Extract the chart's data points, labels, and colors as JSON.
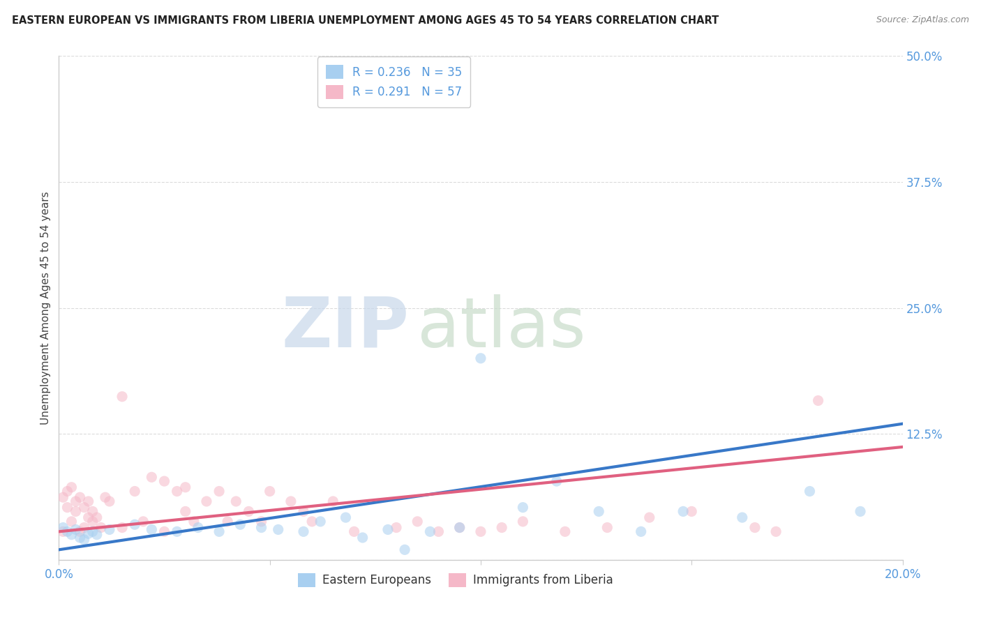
{
  "title": "EASTERN EUROPEAN VS IMMIGRANTS FROM LIBERIA UNEMPLOYMENT AMONG AGES 45 TO 54 YEARS CORRELATION CHART",
  "source": "Source: ZipAtlas.com",
  "ylabel": "Unemployment Among Ages 45 to 54 years",
  "xlim": [
    0.0,
    0.2
  ],
  "ylim": [
    0.0,
    0.5
  ],
  "xticks": [
    0.0,
    0.05,
    0.1,
    0.15,
    0.2
  ],
  "xticklabels": [
    "0.0%",
    "",
    "",
    "",
    "20.0%"
  ],
  "yticks": [
    0.0,
    0.125,
    0.25,
    0.375,
    0.5
  ],
  "yticklabels": [
    "",
    "12.5%",
    "25.0%",
    "37.5%",
    "50.0%"
  ],
  "legend_entries": [
    {
      "label": "Eastern Europeans",
      "R": 0.236,
      "N": 35,
      "color": "#a8cff0"
    },
    {
      "label": "Immigrants from Liberia",
      "R": 0.291,
      "N": 57,
      "color": "#f5b8c8"
    }
  ],
  "blue_scatter_x": [
    0.001,
    0.002,
    0.003,
    0.004,
    0.005,
    0.006,
    0.007,
    0.008,
    0.009,
    0.012,
    0.018,
    0.022,
    0.028,
    0.033,
    0.038,
    0.043,
    0.048,
    0.052,
    0.058,
    0.062,
    0.068,
    0.072,
    0.078,
    0.082,
    0.088,
    0.095,
    0.1,
    0.11,
    0.118,
    0.128,
    0.138,
    0.148,
    0.162,
    0.178,
    0.19
  ],
  "blue_scatter_y": [
    0.032,
    0.028,
    0.025,
    0.03,
    0.022,
    0.02,
    0.026,
    0.028,
    0.025,
    0.03,
    0.035,
    0.03,
    0.028,
    0.032,
    0.028,
    0.035,
    0.032,
    0.03,
    0.028,
    0.038,
    0.042,
    0.022,
    0.03,
    0.01,
    0.028,
    0.032,
    0.2,
    0.052,
    0.078,
    0.048,
    0.028,
    0.048,
    0.042,
    0.068,
    0.048
  ],
  "pink_scatter_x": [
    0.001,
    0.001,
    0.002,
    0.002,
    0.003,
    0.003,
    0.004,
    0.004,
    0.005,
    0.005,
    0.006,
    0.006,
    0.007,
    0.007,
    0.008,
    0.008,
    0.009,
    0.01,
    0.011,
    0.012,
    0.015,
    0.015,
    0.018,
    0.02,
    0.022,
    0.025,
    0.025,
    0.028,
    0.03,
    0.03,
    0.032,
    0.035,
    0.038,
    0.04,
    0.042,
    0.045,
    0.048,
    0.05,
    0.055,
    0.058,
    0.06,
    0.065,
    0.07,
    0.08,
    0.085,
    0.09,
    0.095,
    0.1,
    0.105,
    0.11,
    0.12,
    0.13,
    0.14,
    0.15,
    0.165,
    0.17,
    0.18
  ],
  "pink_scatter_y": [
    0.028,
    0.062,
    0.052,
    0.068,
    0.038,
    0.072,
    0.048,
    0.058,
    0.028,
    0.062,
    0.032,
    0.052,
    0.042,
    0.058,
    0.038,
    0.048,
    0.042,
    0.032,
    0.062,
    0.058,
    0.162,
    0.032,
    0.068,
    0.038,
    0.082,
    0.078,
    0.028,
    0.068,
    0.072,
    0.048,
    0.038,
    0.058,
    0.068,
    0.038,
    0.058,
    0.048,
    0.038,
    0.068,
    0.058,
    0.048,
    0.038,
    0.058,
    0.028,
    0.032,
    0.038,
    0.028,
    0.032,
    0.028,
    0.032,
    0.038,
    0.028,
    0.032,
    0.042,
    0.048,
    0.032,
    0.028,
    0.158
  ],
  "blue_line_x": [
    0.0,
    0.2
  ],
  "blue_line_y": [
    0.01,
    0.135
  ],
  "pink_line_x": [
    0.0,
    0.2
  ],
  "pink_line_y": [
    0.028,
    0.112
  ],
  "scatter_size": 120,
  "scatter_alpha": 0.55,
  "blue_color": "#a8cff0",
  "pink_color": "#f5b8c8",
  "blue_line_color": "#3878c8",
  "pink_line_color": "#e06080",
  "bg_color": "#ffffff",
  "grid_color": "#cccccc",
  "title_color": "#222222",
  "axis_label_color": "#444444",
  "tick_color": "#5599dd",
  "watermark_zip_color": "#c5d8ee",
  "watermark_atlas_color": "#d0e8d0"
}
